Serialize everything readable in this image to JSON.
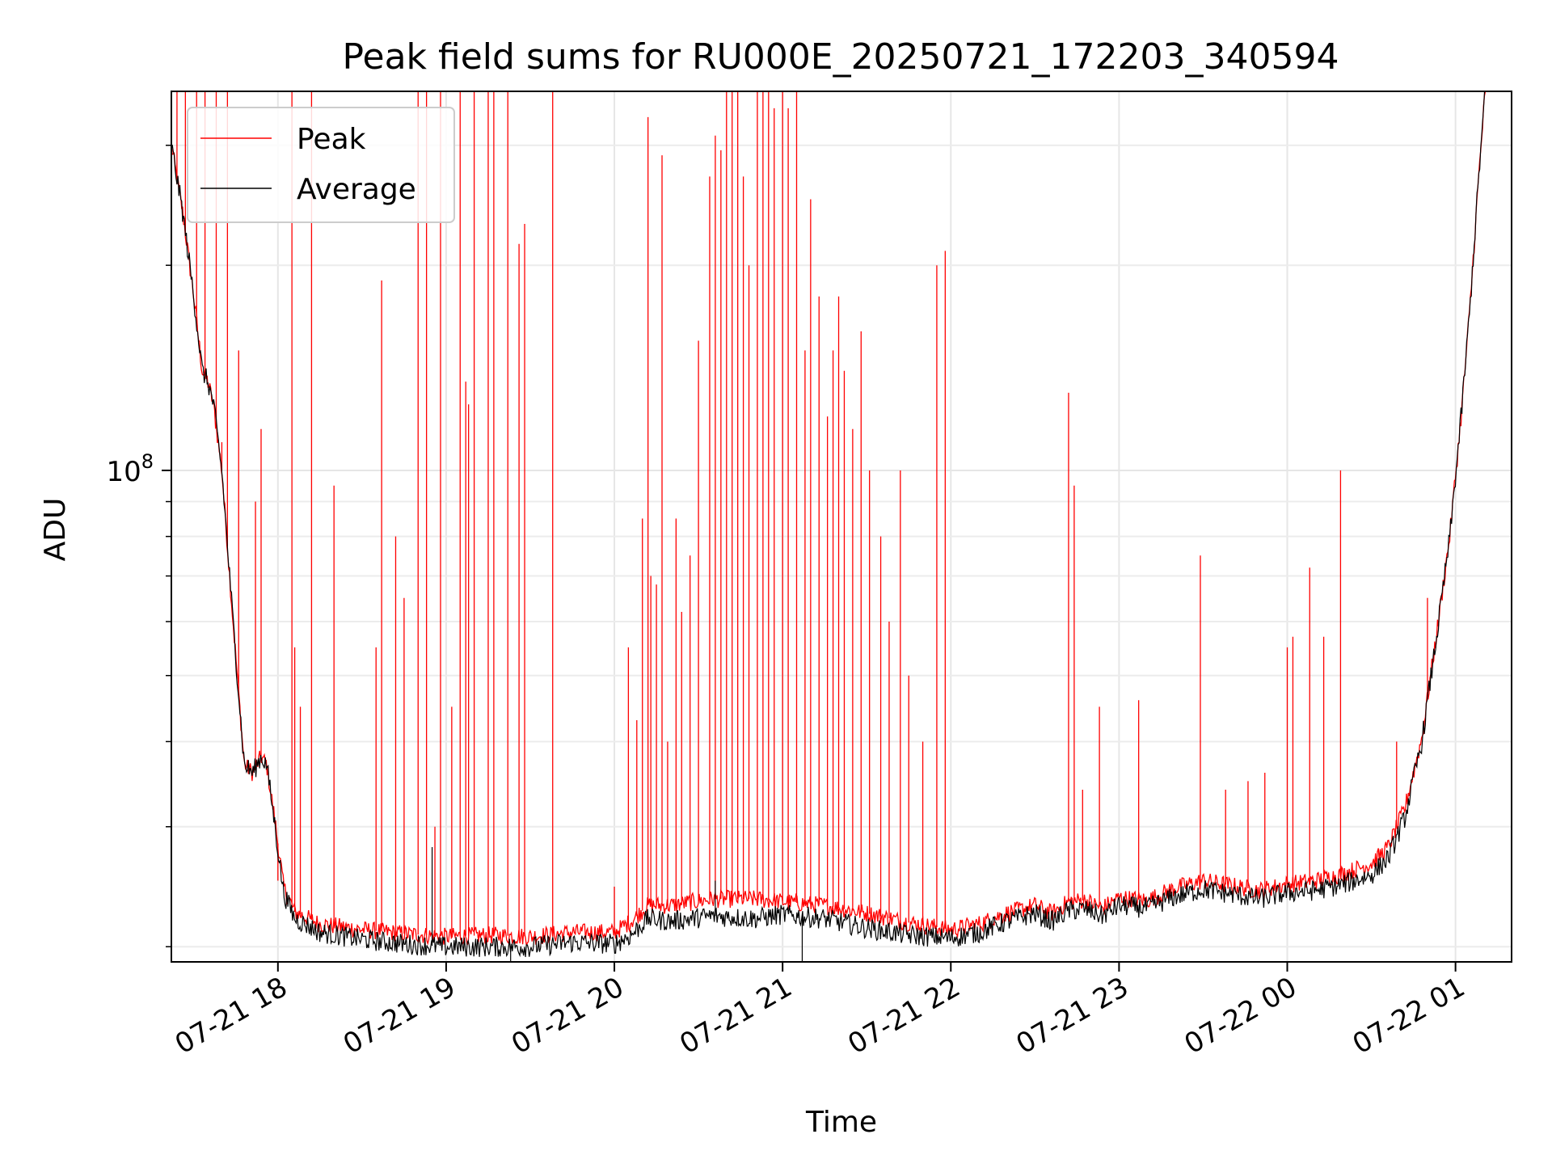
{
  "chart_data": {
    "type": "line",
    "title": "Peak field sums for RU000E_20250721_172203_340594",
    "xlabel": "Time",
    "ylabel": "ADU",
    "y_scale": "log",
    "ylim": [
      19000000,
      360000000
    ],
    "xlim": [
      "2025-07-21 17:22",
      "2025-07-22 01:20"
    ],
    "grid": true,
    "legend_position": "upper-left",
    "x_ticks": [
      {
        "value": "2025-07-21 18:00",
        "label": "07-21 18"
      },
      {
        "value": "2025-07-21 19:00",
        "label": "07-21 19"
      },
      {
        "value": "2025-07-21 20:00",
        "label": "07-21 20"
      },
      {
        "value": "2025-07-21 21:00",
        "label": "07-21 21"
      },
      {
        "value": "2025-07-21 22:00",
        "label": "07-21 22"
      },
      {
        "value": "2025-07-21 23:00",
        "label": "07-21 23"
      },
      {
        "value": "2025-07-22 00:00",
        "label": "07-22 00"
      },
      {
        "value": "2025-07-22 01:00",
        "label": "07-22 01"
      }
    ],
    "y_major_ticks": [
      {
        "value": 100000000,
        "label_base": "10",
        "label_exp": "8"
      }
    ],
    "y_minor_ticks": [
      20000000,
      30000000,
      40000000,
      50000000,
      60000000,
      70000000,
      80000000,
      90000000,
      200000000,
      300000000
    ],
    "series": [
      {
        "name": "Average",
        "color": "#000000",
        "x": [
          "2025-07-21 17:22",
          "2025-07-21 17:26",
          "2025-07-21 17:30",
          "2025-07-21 17:33",
          "2025-07-21 17:35",
          "2025-07-21 17:37",
          "2025-07-21 17:40",
          "2025-07-21 17:44",
          "2025-07-21 17:48",
          "2025-07-21 17:51",
          "2025-07-21 17:54",
          "2025-07-21 17:56",
          "2025-07-21 17:59",
          "2025-07-21 18:02",
          "2025-07-21 18:06",
          "2025-07-21 18:15",
          "2025-07-21 18:30",
          "2025-07-21 18:45",
          "2025-07-21 19:00",
          "2025-07-21 19:15",
          "2025-07-21 19:30",
          "2025-07-21 19:45",
          "2025-07-21 20:00",
          "2025-07-21 20:06",
          "2025-07-21 20:12",
          "2025-07-21 20:20",
          "2025-07-21 20:35",
          "2025-07-21 20:50",
          "2025-07-21 21:00",
          "2025-07-21 21:15",
          "2025-07-21 21:30",
          "2025-07-21 21:45",
          "2025-07-21 22:00",
          "2025-07-21 22:10",
          "2025-07-21 22:20",
          "2025-07-21 22:30",
          "2025-07-21 22:36",
          "2025-07-21 22:42",
          "2025-07-21 22:48",
          "2025-07-21 22:54",
          "2025-07-21 23:00",
          "2025-07-21 23:10",
          "2025-07-21 23:20",
          "2025-07-21 23:30",
          "2025-07-21 23:40",
          "2025-07-21 23:50",
          "2025-07-22 00:00",
          "2025-07-22 00:10",
          "2025-07-22 00:20",
          "2025-07-22 00:30",
          "2025-07-22 00:36",
          "2025-07-22 00:42",
          "2025-07-22 00:48",
          "2025-07-22 00:54",
          "2025-07-22 00:58",
          "2025-07-22 01:02",
          "2025-07-22 01:05",
          "2025-07-22 01:08",
          "2025-07-22 01:11"
        ],
        "y": [
          300000000,
          240000000,
          180000000,
          140000000,
          135000000,
          125000000,
          100000000,
          60000000,
          37000000,
          36000000,
          38000000,
          37000000,
          30000000,
          24000000,
          22000000,
          21000000,
          20500000,
          20200000,
          20000000,
          20000000,
          20000000,
          20300000,
          20200000,
          20800000,
          22000000,
          21800000,
          22200000,
          22000000,
          22300000,
          22000000,
          21300000,
          20800000,
          20600000,
          21000000,
          21800000,
          22400000,
          21800000,
          22600000,
          22700000,
          22200000,
          23000000,
          22800000,
          23700000,
          24300000,
          23900000,
          23500000,
          24000000,
          24200000,
          24700000,
          25500000,
          27000000,
          31000000,
          40000000,
          60000000,
          80000000,
          120000000,
          170000000,
          260000000,
          380000000
        ]
      },
      {
        "name": "Peak",
        "color": "#ff0000",
        "x": [
          "2025-07-21 17:22",
          "2025-07-21 17:26",
          "2025-07-21 17:30",
          "2025-07-21 17:33",
          "2025-07-21 17:35",
          "2025-07-21 17:37",
          "2025-07-21 17:40",
          "2025-07-21 17:44",
          "2025-07-21 17:48",
          "2025-07-21 17:51",
          "2025-07-21 17:54",
          "2025-07-21 17:56",
          "2025-07-21 17:59",
          "2025-07-21 18:02",
          "2025-07-21 18:06",
          "2025-07-21 18:15",
          "2025-07-21 18:30",
          "2025-07-21 18:45",
          "2025-07-21 19:00",
          "2025-07-21 19:15",
          "2025-07-21 19:30",
          "2025-07-21 19:45",
          "2025-07-21 20:00",
          "2025-07-21 20:06",
          "2025-07-21 20:12",
          "2025-07-21 20:20",
          "2025-07-21 20:35",
          "2025-07-21 20:50",
          "2025-07-21 21:00",
          "2025-07-21 21:15",
          "2025-07-21 21:30",
          "2025-07-21 21:45",
          "2025-07-21 22:00",
          "2025-07-21 22:10",
          "2025-07-21 22:20",
          "2025-07-21 22:30",
          "2025-07-21 22:36",
          "2025-07-21 22:42",
          "2025-07-21 22:48",
          "2025-07-21 22:54",
          "2025-07-21 23:00",
          "2025-07-21 23:10",
          "2025-07-21 23:20",
          "2025-07-21 23:30",
          "2025-07-21 23:40",
          "2025-07-21 23:50",
          "2025-07-22 00:00",
          "2025-07-22 00:10",
          "2025-07-22 00:20",
          "2025-07-22 00:30",
          "2025-07-22 00:36",
          "2025-07-22 00:42",
          "2025-07-22 00:48",
          "2025-07-22 00:54",
          "2025-07-22 00:58",
          "2025-07-22 01:02",
          "2025-07-22 01:05",
          "2025-07-22 01:08",
          "2025-07-22 01:11"
        ],
        "y": [
          300000000,
          240000000,
          180000000,
          140000000,
          135000000,
          125000000,
          100000000,
          60000000,
          37000000,
          36000000,
          38000000,
          37000000,
          30500000,
          24500000,
          22500000,
          21600000,
          21200000,
          20900000,
          20700000,
          20800000,
          20700000,
          21000000,
          21000000,
          21800000,
          23000000,
          23000000,
          23500000,
          23500000,
          23300000,
          23000000,
          22400000,
          21700000,
          21200000,
          21600000,
          22400000,
          23000000,
          22400000,
          23300000,
          23400000,
          22800000,
          23600000,
          23400000,
          24400000,
          25000000,
          24600000,
          24200000,
          24700000,
          25000000,
          25600000,
          26500000,
          28000000,
          32000000,
          40500000,
          60500000,
          80500000,
          120000000,
          170000000,
          260000000,
          380000000
        ]
      }
    ],
    "peak_spikes": [
      {
        "t": "2025-07-21 17:24",
        "y": 380000000
      },
      {
        "t": "2025-07-21 17:27",
        "y": 380000000
      },
      {
        "t": "2025-07-21 17:31",
        "y": 380000000
      },
      {
        "t": "2025-07-21 17:34",
        "y": 380000000
      },
      {
        "t": "2025-07-21 17:38",
        "y": 380000000
      },
      {
        "t": "2025-07-21 17:40",
        "y": 110000000
      },
      {
        "t": "2025-07-21 17:42",
        "y": 380000000
      },
      {
        "t": "2025-07-21 17:46",
        "y": 150000000
      },
      {
        "t": "2025-07-21 17:52",
        "y": 90000000
      },
      {
        "t": "2025-07-21 17:54",
        "y": 115000000
      },
      {
        "t": "2025-07-21 18:00",
        "y": 25000000
      },
      {
        "t": "2025-07-21 18:05",
        "y": 380000000
      },
      {
        "t": "2025-07-21 18:06",
        "y": 55000000
      },
      {
        "t": "2025-07-21 18:08",
        "y": 45000000
      },
      {
        "t": "2025-07-21 18:12",
        "y": 380000000
      },
      {
        "t": "2025-07-21 18:20",
        "y": 95000000
      },
      {
        "t": "2025-07-21 18:35",
        "y": 55000000
      },
      {
        "t": "2025-07-21 18:37",
        "y": 190000000
      },
      {
        "t": "2025-07-21 18:42",
        "y": 80000000
      },
      {
        "t": "2025-07-21 18:45",
        "y": 65000000
      },
      {
        "t": "2025-07-21 18:50",
        "y": 380000000
      },
      {
        "t": "2025-07-21 18:53",
        "y": 380000000
      },
      {
        "t": "2025-07-21 18:56",
        "y": 30000000
      },
      {
        "t": "2025-07-21 18:58",
        "y": 380000000
      },
      {
        "t": "2025-07-21 19:02",
        "y": 45000000
      },
      {
        "t": "2025-07-21 19:05",
        "y": 380000000
      },
      {
        "t": "2025-07-21 19:07",
        "y": 135000000
      },
      {
        "t": "2025-07-21 19:08",
        "y": 125000000
      },
      {
        "t": "2025-07-21 19:10",
        "y": 380000000
      },
      {
        "t": "2025-07-21 19:15",
        "y": 380000000
      },
      {
        "t": "2025-07-21 19:17",
        "y": 380000000
      },
      {
        "t": "2025-07-21 19:22",
        "y": 380000000
      },
      {
        "t": "2025-07-21 19:26",
        "y": 215000000
      },
      {
        "t": "2025-07-21 19:28",
        "y": 230000000
      },
      {
        "t": "2025-07-21 19:38",
        "y": 380000000
      },
      {
        "t": "2025-07-21 20:00",
        "y": 24500000
      },
      {
        "t": "2025-07-21 20:05",
        "y": 55000000
      },
      {
        "t": "2025-07-21 20:08",
        "y": 43000000
      },
      {
        "t": "2025-07-21 20:10",
        "y": 85000000
      },
      {
        "t": "2025-07-21 20:12",
        "y": 330000000
      },
      {
        "t": "2025-07-21 20:13",
        "y": 70000000
      },
      {
        "t": "2025-07-21 20:15",
        "y": 68000000
      },
      {
        "t": "2025-07-21 20:17",
        "y": 290000000
      },
      {
        "t": "2025-07-21 20:19",
        "y": 40000000
      },
      {
        "t": "2025-07-21 20:22",
        "y": 85000000
      },
      {
        "t": "2025-07-21 20:24",
        "y": 62000000
      },
      {
        "t": "2025-07-21 20:27",
        "y": 75000000
      },
      {
        "t": "2025-07-21 20:30",
        "y": 155000000
      },
      {
        "t": "2025-07-21 20:34",
        "y": 270000000
      },
      {
        "t": "2025-07-21 20:36",
        "y": 310000000
      },
      {
        "t": "2025-07-21 20:38",
        "y": 295000000
      },
      {
        "t": "2025-07-21 20:40",
        "y": 380000000
      },
      {
        "t": "2025-07-21 20:42",
        "y": 380000000
      },
      {
        "t": "2025-07-21 20:44",
        "y": 380000000
      },
      {
        "t": "2025-07-21 20:46",
        "y": 270000000
      },
      {
        "t": "2025-07-21 20:48",
        "y": 200000000
      },
      {
        "t": "2025-07-21 20:51",
        "y": 380000000
      },
      {
        "t": "2025-07-21 20:53",
        "y": 380000000
      },
      {
        "t": "2025-07-21 20:55",
        "y": 380000000
      },
      {
        "t": "2025-07-21 20:57",
        "y": 340000000
      },
      {
        "t": "2025-07-21 21:00",
        "y": 380000000
      },
      {
        "t": "2025-07-21 21:02",
        "y": 340000000
      },
      {
        "t": "2025-07-21 21:05",
        "y": 380000000
      },
      {
        "t": "2025-07-21 21:08",
        "y": 150000000
      },
      {
        "t": "2025-07-21 21:10",
        "y": 250000000
      },
      {
        "t": "2025-07-21 21:13",
        "y": 180000000
      },
      {
        "t": "2025-07-21 21:16",
        "y": 120000000
      },
      {
        "t": "2025-07-21 21:18",
        "y": 150000000
      },
      {
        "t": "2025-07-21 21:20",
        "y": 180000000
      },
      {
        "t": "2025-07-21 21:22",
        "y": 140000000
      },
      {
        "t": "2025-07-21 21:25",
        "y": 115000000
      },
      {
        "t": "2025-07-21 21:28",
        "y": 160000000
      },
      {
        "t": "2025-07-21 21:31",
        "y": 100000000
      },
      {
        "t": "2025-07-21 21:35",
        "y": 80000000
      },
      {
        "t": "2025-07-21 21:38",
        "y": 60000000
      },
      {
        "t": "2025-07-21 21:42",
        "y": 100000000
      },
      {
        "t": "2025-07-21 21:45",
        "y": 50000000
      },
      {
        "t": "2025-07-21 21:50",
        "y": 40000000
      },
      {
        "t": "2025-07-21 21:55",
        "y": 200000000
      },
      {
        "t": "2025-07-21 21:58",
        "y": 210000000
      },
      {
        "t": "2025-07-21 22:42",
        "y": 130000000
      },
      {
        "t": "2025-07-21 22:44",
        "y": 95000000
      },
      {
        "t": "2025-07-21 22:47",
        "y": 34000000
      },
      {
        "t": "2025-07-21 22:53",
        "y": 45000000
      },
      {
        "t": "2025-07-21 23:07",
        "y": 46000000
      },
      {
        "t": "2025-07-21 23:29",
        "y": 75000000
      },
      {
        "t": "2025-07-21 23:38",
        "y": 34000000
      },
      {
        "t": "2025-07-21 23:46",
        "y": 35000000
      },
      {
        "t": "2025-07-21 23:52",
        "y": 36000000
      },
      {
        "t": "2025-07-22 00:00",
        "y": 55000000
      },
      {
        "t": "2025-07-22 00:02",
        "y": 57000000
      },
      {
        "t": "2025-07-22 00:08",
        "y": 72000000
      },
      {
        "t": "2025-07-22 00:13",
        "y": 57000000
      },
      {
        "t": "2025-07-22 00:19",
        "y": 100000000
      },
      {
        "t": "2025-07-22 00:39",
        "y": 40000000
      },
      {
        "t": "2025-07-22 00:50",
        "y": 65000000
      }
    ],
    "average_spikes": [
      {
        "t": "2025-07-21 18:55",
        "y": 28000000
      },
      {
        "t": "2025-07-21 19:23",
        "y": 17000000
      },
      {
        "t": "2025-07-21 20:36",
        "y": 25000000
      },
      {
        "t": "2025-07-21 21:07",
        "y": 17000000
      }
    ]
  }
}
